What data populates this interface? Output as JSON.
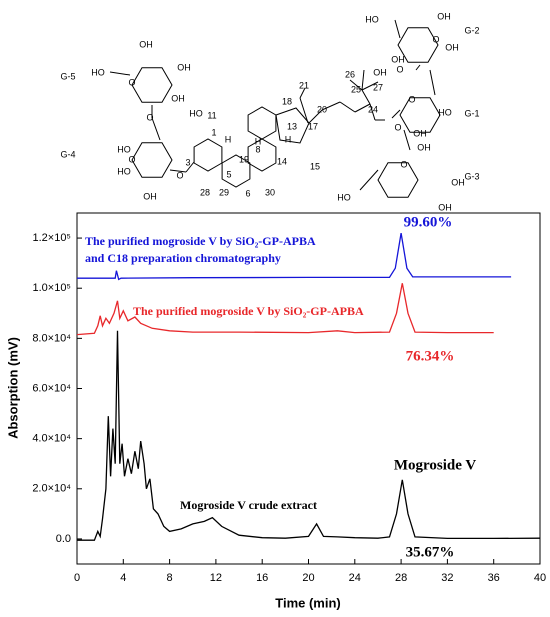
{
  "structure": {
    "labels": [
      "G-5",
      "HO",
      "OH",
      "OH",
      "OH",
      "O",
      "O",
      "G-4",
      "HO",
      "HO",
      "OH",
      "O",
      "O",
      "HO",
      "11",
      "1",
      "3",
      "5",
      "6",
      "8",
      "19",
      "28",
      "29",
      "30",
      "14",
      "13",
      "17",
      "18",
      "20",
      "21",
      "15",
      "H",
      "H",
      "H",
      "24",
      "25",
      "26",
      "27",
      "OH",
      "O",
      "O",
      "G-2",
      "HO",
      "OH",
      "OH",
      "OH",
      "O",
      "G-1",
      "OH",
      "HO",
      "O",
      "G-3",
      "HO",
      "OH",
      "OH",
      "OH",
      "O"
    ]
  },
  "chart_data": {
    "type": "line",
    "x_label": "Time (min)",
    "y_label": "Absorption (mV)",
    "xlim": [
      0,
      40
    ],
    "xticks": [
      0,
      4,
      8,
      12,
      16,
      20,
      24,
      28,
      32,
      36,
      40
    ],
    "ylim": [
      -10000,
      130000
    ],
    "yticks": [
      {
        "value": 0,
        "label": "0.0"
      },
      {
        "value": 20000,
        "label": "2.0×10⁴"
      },
      {
        "value": 40000,
        "label": "4.0×10⁴"
      },
      {
        "value": 60000,
        "label": "6.0×10⁴"
      },
      {
        "value": 80000,
        "label": "8.0×10⁴"
      },
      {
        "value": 100000,
        "label": "1.0×10⁵"
      },
      {
        "value": 120000,
        "label": "1.2×10⁵"
      }
    ],
    "series": [
      {
        "name": "The purified mogroside V by SiO₂-GP-APBA and C18 preparation chromatography",
        "color": "#1515d8",
        "x": [
          0,
          3.3,
          3.4,
          3.6,
          3.8,
          10,
          20,
          27,
          27.5,
          28,
          28.5,
          29,
          33,
          37.5
        ],
        "values": [
          104000,
          104000,
          107000,
          103500,
          104000,
          104200,
          104300,
          104300,
          108000,
          122000,
          108000,
          104500,
          104500,
          104500
        ]
      },
      {
        "name": "The purified mogroside V by SiO₂-GP-APBA",
        "color": "#e8282b",
        "x": [
          0,
          1.5,
          1.8,
          2.0,
          2.2,
          2.5,
          2.8,
          3.2,
          3.5,
          3.7,
          4.0,
          4.4,
          5,
          5.5,
          6.5,
          8,
          10,
          14,
          20,
          22.5,
          24,
          27,
          27.6,
          28.1,
          28.6,
          29.2,
          32,
          36
        ],
        "values": [
          81500,
          82000,
          85000,
          89000,
          85000,
          88000,
          86000,
          90000,
          95000,
          88000,
          91000,
          87000,
          88500,
          86000,
          84000,
          83000,
          82500,
          82500,
          82300,
          83000,
          82300,
          82500,
          90000,
          102000,
          90000,
          82500,
          82300,
          82300
        ]
      },
      {
        "name": "Mogroside V crude extract",
        "color": "#000000",
        "x": [
          0,
          1.5,
          1.8,
          2.0,
          2.2,
          2.5,
          2.7,
          2.9,
          3.1,
          3.3,
          3.5,
          3.7,
          3.9,
          4.1,
          4.4,
          4.7,
          5.0,
          5.3,
          5.5,
          5.8,
          6.0,
          6.3,
          6.6,
          7.0,
          7.5,
          8.0,
          9,
          10,
          11,
          11.7,
          12.5,
          14,
          16,
          18,
          20,
          20.7,
          21.3,
          22.5,
          24,
          26,
          27,
          27.6,
          28.1,
          28.6,
          29.2,
          32,
          36,
          40
        ],
        "values": [
          -500,
          -500,
          3000,
          1000,
          8000,
          20000,
          49000,
          25000,
          44000,
          30000,
          83000,
          30000,
          38000,
          25000,
          32000,
          26000,
          35000,
          28000,
          39000,
          30000,
          20000,
          24000,
          12000,
          10000,
          5000,
          3000,
          4000,
          6000,
          7000,
          8500,
          5000,
          1500,
          500,
          300,
          1000,
          6000,
          1000,
          800,
          500,
          300,
          800,
          10000,
          23600,
          10000,
          800,
          200,
          200,
          300
        ]
      }
    ],
    "annotations": [
      "99.60%",
      "76.34%",
      "Mogroside V",
      "35.67%"
    ]
  }
}
